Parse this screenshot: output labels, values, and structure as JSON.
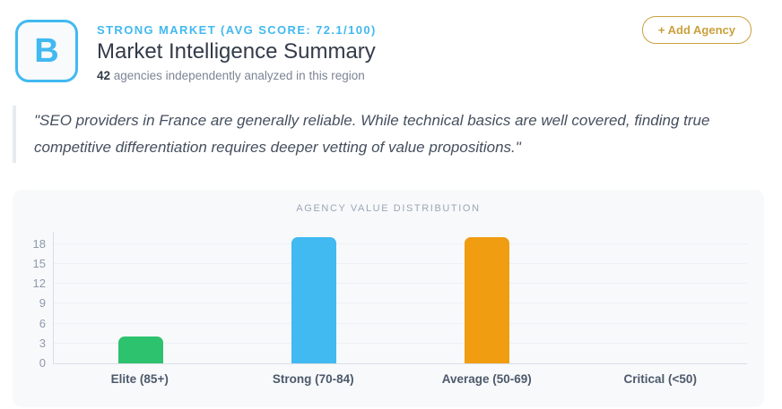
{
  "header": {
    "grade": "B",
    "overline": "Strong Market (Avg Score: 72.1/100)",
    "title": "Market Intelligence Summary",
    "subtitle_count": "42",
    "subtitle_rest": " agencies independently analyzed in this region",
    "add_agency_label": "+ Add Agency"
  },
  "quote": {
    "text": "\"SEO providers in France are generally reliable. While technical basics are well covered, finding true competitive differentiation requires deeper vetting of value propositions.\""
  },
  "chart_data": {
    "type": "bar",
    "title": "Agency Value Distribution",
    "categories": [
      "Elite (85+)",
      "Strong (70-84)",
      "Average (50-69)",
      "Critical (<50)"
    ],
    "values": [
      4,
      19,
      19,
      0
    ],
    "bar_colors": [
      "#2dc26d",
      "#41b9f1",
      "#f09d12",
      "#cccccc"
    ],
    "yticks": [
      0,
      3,
      6,
      9,
      12,
      15,
      18
    ],
    "ylim": [
      0,
      20
    ],
    "grid": true,
    "legend": false,
    "xlabel": "",
    "ylabel": ""
  },
  "colors": {
    "accent_cyan": "#41b9f1",
    "accent_gold": "#c9a13c",
    "panel_bg": "#f8f9fb"
  }
}
